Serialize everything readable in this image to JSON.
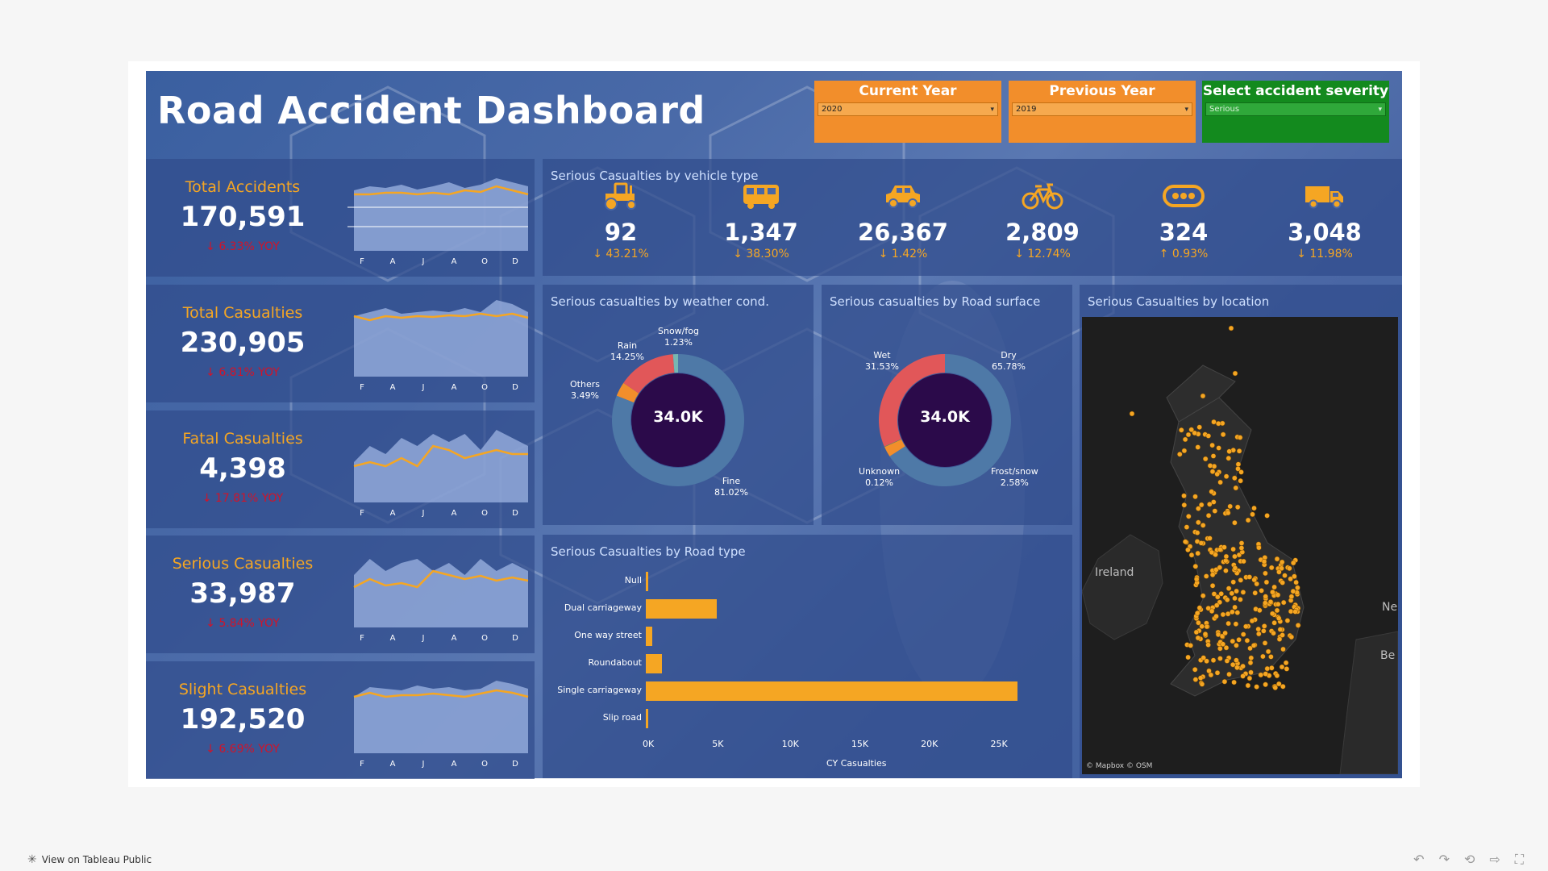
{
  "dashboard": {
    "title": "Road Accident Dashboard"
  },
  "filters": [
    {
      "label": "Current Year",
      "value": "2020",
      "color": "#f28e2b"
    },
    {
      "label": "Previous Year",
      "value": "2019",
      "color": "#f28e2b"
    },
    {
      "label": "Select accident severity",
      "value": "Serious",
      "color": "#138a1e"
    }
  ],
  "kpis": [
    {
      "name": "Total Accidents",
      "value": "170,591",
      "yoy": "↓ 6.33% YOY"
    },
    {
      "name": "Total Casualties",
      "value": "230,905",
      "yoy": "↓ 6.81% YOY"
    },
    {
      "name": "Fatal Casualties",
      "value": "4,398",
      "yoy": "↓ 17.81% YOY"
    },
    {
      "name": "Serious Casualties",
      "value": "33,987",
      "yoy": "↓ 5.84% YOY"
    },
    {
      "name": "Slight Casualties",
      "value": "192,520",
      "yoy": "↓ 6.69% YOY"
    }
  ],
  "spark_months": [
    "F",
    "A",
    "J",
    "A",
    "O",
    "D"
  ],
  "vehicle_panel": {
    "title": "Serious Casualties by vehicle type",
    "items": [
      {
        "icon": "tractor-icon",
        "value": "92",
        "yoy": "↓ 43.21%"
      },
      {
        "icon": "bus-icon",
        "value": "1,347",
        "yoy": "↓ 38.30%"
      },
      {
        "icon": "car-icon",
        "value": "26,367",
        "yoy": "↓ 1.42%"
      },
      {
        "icon": "bicycle-icon",
        "value": "2,809",
        "yoy": "↓ 12.74%"
      },
      {
        "icon": "other-vehicle-icon",
        "value": "324",
        "yoy": "↑ 0.93%"
      },
      {
        "icon": "van-icon",
        "value": "3,048",
        "yoy": "↓ 11.98%"
      }
    ]
  },
  "weather_panel": {
    "title": "Serious casualties by weather cond.",
    "center": "34.0K",
    "segments": [
      {
        "name": "Fine",
        "pct": "81.02%",
        "value": 81.02,
        "color": "#4e79a7"
      },
      {
        "name": "Others",
        "pct": "3.49%",
        "value": 3.49,
        "color": "#f28e2b"
      },
      {
        "name": "Rain",
        "pct": "14.25%",
        "value": 14.25,
        "color": "#e15759"
      },
      {
        "name": "Snow/fog",
        "pct": "1.23%",
        "value": 1.23,
        "color": "#76b7b2"
      }
    ]
  },
  "surface_panel": {
    "title": "Serious casualties by Road surface",
    "center": "34.0K",
    "segments": [
      {
        "name": "Dry",
        "pct": "65.78%",
        "value": 65.78,
        "color": "#4e79a7"
      },
      {
        "name": "Frost/snow",
        "pct": "2.58%",
        "value": 2.58,
        "color": "#f28e2b"
      },
      {
        "name": "Unknown",
        "pct": "0.12%",
        "value": 0.12,
        "color": "#59a14f"
      },
      {
        "name": "Wet",
        "pct": "31.53%",
        "value": 31.53,
        "color": "#e15759"
      }
    ]
  },
  "location_panel": {
    "title": "Serious Casualties by location",
    "labels": [
      "Ireland",
      "Ne",
      "Be"
    ],
    "attribution": "© Mapbox  © OSM"
  },
  "chart_data": {
    "type": "bar",
    "title": "Serious Casualties by Road type",
    "categories": [
      "Null",
      "Dual carriageway",
      "One way street",
      "Roundabout",
      "Single carriageway",
      "Slip road"
    ],
    "values": [
      150,
      5100,
      450,
      1150,
      26700,
      200
    ],
    "xlabel": "CY Casualties",
    "xlim": [
      0,
      27000
    ],
    "ticks": [
      "0K",
      "5K",
      "10K",
      "15K",
      "20K",
      "25K"
    ],
    "orientation": "horizontal"
  },
  "footer": {
    "view_link": "View on Tableau Public"
  }
}
